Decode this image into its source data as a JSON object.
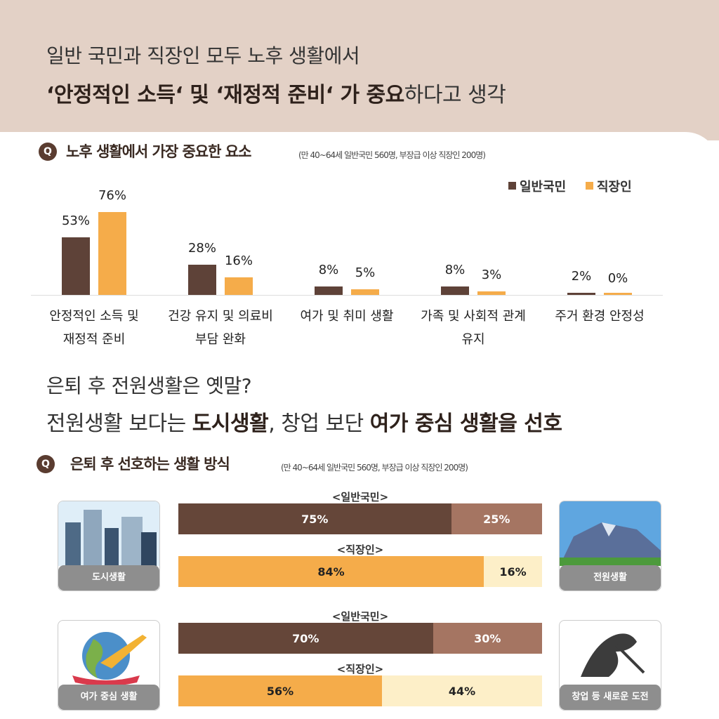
{
  "header": {
    "line1": "일반 국민과 직장인 모두 노후 생활에서",
    "line2": [
      {
        "text": "‘안정적인 소득‘ 및 ‘재정적 준비‘ 가 중요",
        "bold": true
      },
      {
        "text": "하다고 생각",
        "bold": false
      }
    ]
  },
  "headline2": {
    "line1": "은퇴 후 전원생활은 옛말?",
    "line2": [
      {
        "text": "전원생활 보다는 ",
        "bold": false
      },
      {
        "text": "도시생활",
        "bold": true
      },
      {
        "text": ", 창업 보단 ",
        "bold": false
      },
      {
        "text": "여가 중심 생활을 선호",
        "bold": true
      }
    ]
  },
  "chart_data": [
    {
      "type": "bar",
      "q_mark": "Q",
      "title": "노후 생활에서 가장 중요한 요소",
      "subtitle": "(만 40~64세 일반국민 560명, 부장급 이상 직장인 200명)",
      "legend": "top-right",
      "categories": [
        "안정적인 소득 및 재정적 준비",
        "건강 유지 및 의료비 부담 완화",
        "여가 및 취미 생활",
        "가족 및 사회적 관계 유지",
        "주거 환경 안정성"
      ],
      "series": [
        {
          "name": "일반국민",
          "color": "#5e4238",
          "values": [
            53,
            28,
            8,
            8,
            2
          ],
          "value_labels": [
            "53%",
            "28%",
            "8%",
            "8%",
            "2%"
          ]
        },
        {
          "name": "직장인",
          "color": "#f5ac4a",
          "values": [
            76,
            16,
            5,
            3,
            0
          ],
          "value_labels": [
            "76%",
            "16%",
            "5%",
            "3%",
            "0%"
          ]
        }
      ]
    },
    {
      "type": "stacked_hbar",
      "q_mark": "Q",
      "title": "은퇴 후 선호하는 생활 방식",
      "subtitle": "(만 40~64세 일반국민 560명, 부장급 이상 직장인 200명)",
      "groups": [
        {
          "left_label": "도시생활",
          "right_label": "전원생활",
          "icons": [
            "city",
            "mountain"
          ],
          "rows": [
            {
              "name": "<일반국민>",
              "colors": [
                "#654639",
                "#a57562"
              ],
              "text_colors": [
                "#ffffff",
                "#ffffff"
              ],
              "values": [
                75,
                25
              ],
              "value_labels": [
                "75%",
                "25%"
              ]
            },
            {
              "name": "<직장인>",
              "colors": [
                "#f5ac4a",
                "#fdefc8"
              ],
              "text_colors": [
                "#222222",
                "#222222"
              ],
              "values": [
                84,
                16
              ],
              "value_labels": [
                "84%",
                "16%"
              ]
            }
          ]
        },
        {
          "left_label": "여가 중심 생활",
          "right_label": "창업 등 새로운 도전",
          "icons": [
            "globe",
            "hand"
          ],
          "rows": [
            {
              "name": "<일반국민>",
              "colors": [
                "#654639",
                "#a57562"
              ],
              "text_colors": [
                "#ffffff",
                "#ffffff"
              ],
              "values": [
                70,
                30
              ],
              "value_labels": [
                "70%",
                "30%"
              ]
            },
            {
              "name": "<직장인>",
              "colors": [
                "#f5ac4a",
                "#fdefc8"
              ],
              "text_colors": [
                "#222222",
                "#222222"
              ],
              "values": [
                56,
                44
              ],
              "value_labels": [
                "56%",
                "44%"
              ]
            }
          ]
        }
      ]
    }
  ]
}
